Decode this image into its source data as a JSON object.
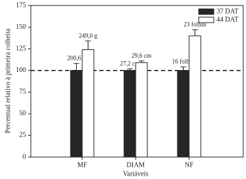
{
  "chart_data": {
    "type": "bar",
    "x_label": "Variáveis",
    "y_label": "Percentual relativo à primeira colheita",
    "categories": [
      "MF",
      "DIAM",
      "NF"
    ],
    "series": [
      {
        "name": "37 DAT",
        "color": "#262626",
        "values": [
          100,
          100,
          100
        ],
        "errors": [
          8,
          2,
          4
        ],
        "labels": [
          "200,6 g",
          "27,2 cm",
          "16 folhas"
        ]
      },
      {
        "name": "44 DAT",
        "color": "#ffffff",
        "values": [
          124,
          109,
          140
        ],
        "errors": [
          10,
          2,
          7
        ],
        "labels": [
          "249,0 g",
          "29,6 cm",
          "23 folhas"
        ]
      }
    ],
    "reference_line": 100,
    "ylim": [
      0,
      175
    ],
    "yticks": [
      0,
      25,
      50,
      75,
      100,
      125,
      150,
      175
    ],
    "legend": "top-right"
  }
}
